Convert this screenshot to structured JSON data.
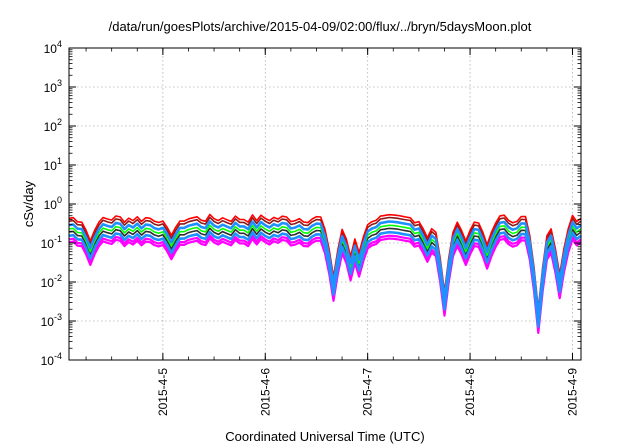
{
  "chart_data": {
    "type": "line",
    "title": "/data/run/goesPlots/archive/2015-04-09/02:00/flux/../bryn/5daysMoon.plot",
    "xlabel": "Coordinated Universal Time (UTC)",
    "ylabel": "cSv/day",
    "yscale": "log",
    "ylim": [
      0.0001,
      10000
    ],
    "xlim": [
      "2015-04-04T02:00",
      "2015-04-09T02:00"
    ],
    "grid": true,
    "legend": "none",
    "y_ticks": [
      {
        "base": "10",
        "exp": "4"
      },
      {
        "base": "10",
        "exp": "3"
      },
      {
        "base": "10",
        "exp": "2"
      },
      {
        "base": "10",
        "exp": "1"
      },
      {
        "base": "10",
        "exp": "0"
      },
      {
        "base": "10",
        "exp": "-1"
      },
      {
        "base": "10",
        "exp": "-2"
      },
      {
        "base": "10",
        "exp": "-3"
      },
      {
        "base": "10",
        "exp": "-4"
      }
    ],
    "x_ticks": [
      "2015-4-5",
      "2015-4-6",
      "2015-4-7",
      "2015-4-8",
      "2015-4-9"
    ],
    "x_tick_times": [
      "2015-04-05T00:00",
      "2015-04-06T00:00",
      "2015-04-07T00:00",
      "2015-04-08T00:00",
      "2015-04-09T00:00"
    ],
    "typical_levels": [
      0.45,
      0.38,
      0.3,
      0.24,
      0.2,
      0.16,
      0.13,
      0.11
    ],
    "dips": [
      {
        "time": "2015-04-04T07:00",
        "min": 0.05
      },
      {
        "time": "2015-04-05T02:00",
        "min": 0.07
      },
      {
        "time": "2015-04-06T16:00",
        "min": 0.006
      },
      {
        "time": "2015-04-06T20:00",
        "min": 0.02
      },
      {
        "time": "2015-04-06T22:00",
        "min": 0.025
      },
      {
        "time": "2015-04-07T14:00",
        "min": 0.06
      },
      {
        "time": "2015-04-07T18:00",
        "min": 0.0025
      },
      {
        "time": "2015-04-07T23:00",
        "min": 0.05
      },
      {
        "time": "2015-04-08T04:00",
        "min": 0.04
      },
      {
        "time": "2015-04-08T16:00",
        "min": 0.0009
      },
      {
        "time": "2015-04-08T21:00",
        "min": 0.007
      }
    ],
    "series_colors": [
      "#ff0000",
      "#8b1a1a",
      "#1e90ff",
      "#00ff00",
      "#2e2e2e",
      "#1e90ff",
      "#ff00ff",
      "#ff00ff"
    ]
  }
}
